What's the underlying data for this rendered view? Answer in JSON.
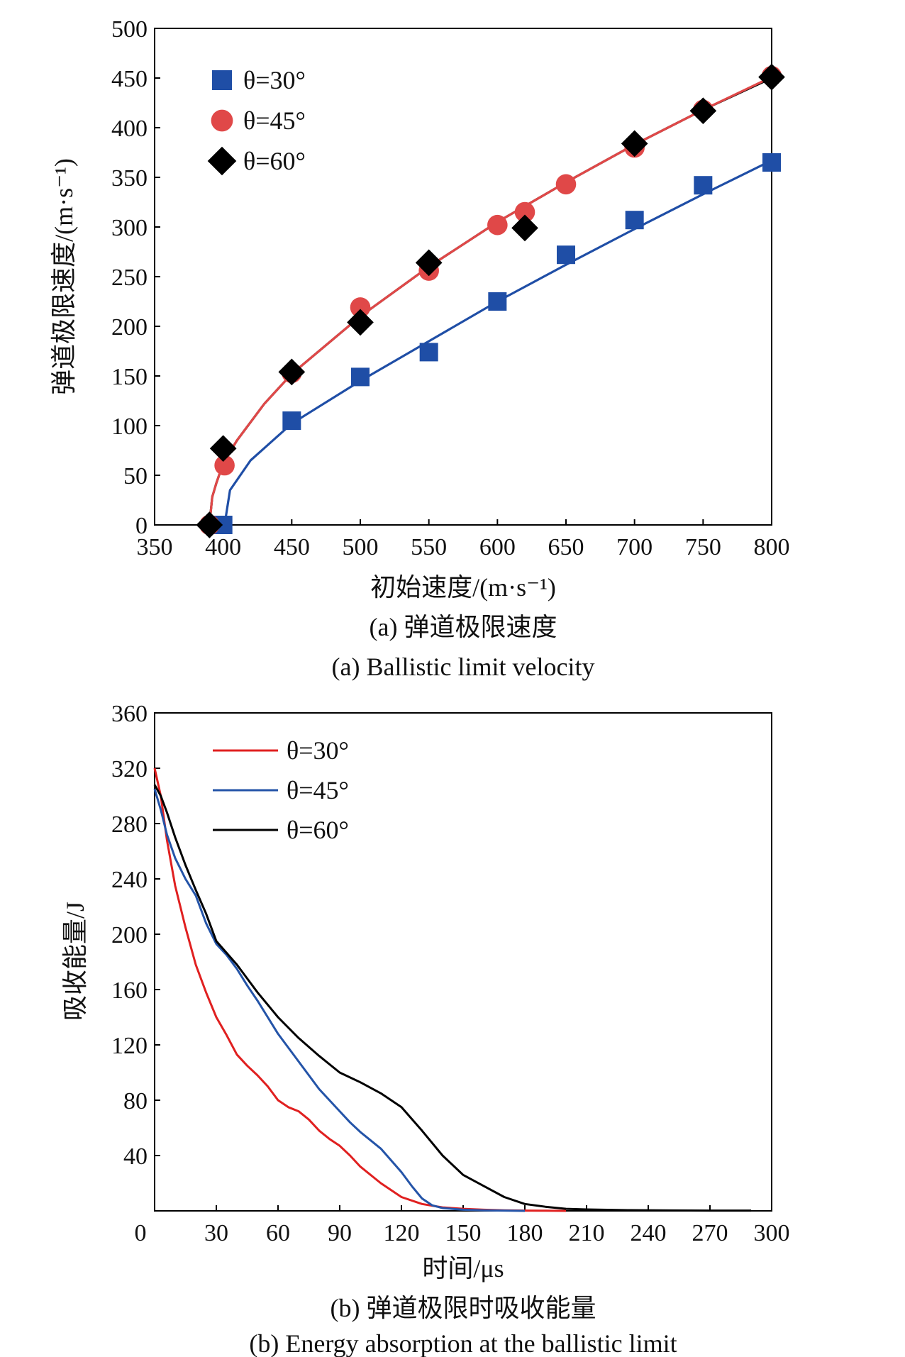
{
  "chart_data": [
    {
      "type": "scatter",
      "caption_cn": "(a) 弹道极限速度",
      "caption_en": "(a) Ballistic limit velocity",
      "xlabel": "初始速度/(m·s⁻¹)",
      "ylabel": "弹道极限速度/(m·s⁻¹)",
      "xlim": [
        350,
        800
      ],
      "ylim": [
        0,
        500
      ],
      "xticks": [
        "350",
        "400",
        "450",
        "500",
        "550",
        "600",
        "650",
        "700",
        "750",
        "800"
      ],
      "yticks": [
        "0",
        "50",
        "100",
        "150",
        "200",
        "250",
        "300",
        "350",
        "400",
        "450",
        "500"
      ],
      "legend_position": "top-left",
      "series": [
        {
          "name": "θ=30°",
          "marker": "square",
          "color": "#1f4ea6",
          "x": [
            400,
            450,
            500,
            550,
            600,
            650,
            700,
            750,
            800
          ],
          "y": [
            0,
            105,
            149,
            174,
            225,
            272,
            307,
            342,
            365
          ],
          "fit": {
            "x": [
              401,
              405,
              420,
              450,
              500,
              550,
              600,
              650,
              700,
              750,
              800
            ],
            "y": [
              0,
              35,
              65,
              102,
              145,
              185,
              225,
              262,
              298,
              333,
              367
            ]
          }
        },
        {
          "name": "θ=45°",
          "marker": "circle",
          "color": "#e04848",
          "x": [
            390,
            401,
            450,
            500,
            550,
            600,
            620,
            650,
            700,
            750,
            800
          ],
          "y": [
            0,
            60,
            153,
            219,
            256,
            302,
            315,
            343,
            380,
            418,
            452
          ],
          "fit": {
            "x": [
              390,
              392,
              395,
              400,
              410,
              430,
              450,
              500,
              550,
              600,
              650,
              700,
              750,
              800
            ],
            "y": [
              0,
              28,
              42,
              62,
              85,
              122,
              152,
              210,
              260,
              305,
              345,
              383,
              418,
              451
            ]
          }
        },
        {
          "name": "θ=60°",
          "marker": "diamond",
          "color": "#000000",
          "x": [
            390,
            400,
            450,
            500,
            550,
            620,
            700,
            750,
            800
          ],
          "y": [
            0,
            77,
            154,
            204,
            264,
            299,
            384,
            417,
            451
          ],
          "fit": {
            "x": [
              390,
              392,
              395,
              400,
              410,
              430,
              450,
              500,
              550,
              600,
              650,
              700,
              750,
              800
            ],
            "y": [
              0,
              28,
              42,
              62,
              85,
              122,
              152,
              210,
              260,
              305,
              345,
              383,
              418,
              450
            ]
          }
        }
      ]
    },
    {
      "type": "line",
      "caption_cn": "(b) 弹道极限时吸收能量",
      "caption_en": "(b) Energy absorption at the ballistic limit",
      "xlabel": "时间/μs",
      "ylabel": "吸收能量/J",
      "xlim": [
        0,
        300
      ],
      "ylim": [
        0,
        360
      ],
      "xticks": [
        "0",
        "30",
        "60",
        "90",
        "120",
        "150",
        "180",
        "210",
        "240",
        "270",
        "300"
      ],
      "yticks": [
        "40",
        "80",
        "120",
        "160",
        "200",
        "240",
        "280",
        "320",
        "360"
      ],
      "legend_position": "top-left",
      "series": [
        {
          "name": "θ=30°",
          "color": "#e02020",
          "x": [
            0,
            3,
            6,
            10,
            15,
            20,
            25,
            30,
            35,
            40,
            45,
            50,
            55,
            60,
            65,
            70,
            75,
            80,
            85,
            90,
            95,
            100,
            110,
            120,
            130,
            140,
            150,
            160,
            170,
            180,
            190,
            200
          ],
          "y": [
            320,
            300,
            268,
            235,
            205,
            178,
            158,
            140,
            127,
            113,
            105,
            98,
            90,
            80,
            75,
            72,
            66,
            58,
            52,
            47,
            40,
            32,
            20,
            10,
            5,
            2.5,
            1.5,
            0.8,
            0.4,
            0.2,
            0.1,
            0
          ]
        },
        {
          "name": "θ=45°",
          "color": "#2454a8",
          "x": [
            0,
            3,
            6,
            10,
            15,
            20,
            25,
            30,
            35,
            40,
            45,
            50,
            55,
            60,
            65,
            70,
            75,
            80,
            85,
            90,
            95,
            100,
            110,
            120,
            125,
            130,
            135,
            140,
            150,
            160,
            170,
            180
          ],
          "y": [
            305,
            290,
            272,
            255,
            240,
            228,
            208,
            193,
            185,
            175,
            163,
            152,
            140,
            128,
            118,
            108,
            98,
            88,
            80,
            72,
            64,
            57,
            45,
            28,
            18,
            9,
            4,
            2,
            0.8,
            0.4,
            0.2,
            0
          ]
        },
        {
          "name": "θ=60°",
          "color": "#000000",
          "x": [
            0,
            3,
            6,
            10,
            15,
            20,
            25,
            30,
            40,
            50,
            60,
            70,
            80,
            90,
            100,
            110,
            120,
            130,
            140,
            150,
            160,
            170,
            180,
            190,
            200,
            210,
            230,
            250,
            270,
            290
          ],
          "y": [
            308,
            300,
            288,
            270,
            250,
            232,
            215,
            195,
            178,
            158,
            140,
            125,
            112,
            100,
            93,
            85,
            75,
            58,
            40,
            26,
            18,
            10,
            5,
            3,
            1.5,
            1,
            0.5,
            0.3,
            0.2,
            0.2
          ]
        }
      ]
    }
  ]
}
